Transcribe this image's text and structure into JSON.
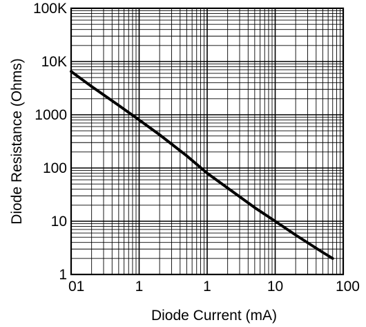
{
  "chart_data": {
    "type": "line",
    "title": "",
    "xlabel": "Diode Current (mA)",
    "ylabel": "Diode Resistance (Ohms)",
    "x_scale": "log",
    "y_scale": "log",
    "xlim": [
      0.01,
      100
    ],
    "ylim": [
      1,
      100000
    ],
    "grid": true,
    "x_tick_labels": [
      "01",
      "1",
      "1",
      "10",
      "100"
    ],
    "y_tick_labels": [
      "1",
      "10",
      "100",
      "1000",
      "10K",
      "100K"
    ],
    "series": [
      {
        "x": [
          0.01,
          0.02,
          0.05,
          0.1,
          0.2,
          0.5,
          1,
          2,
          5,
          10,
          20,
          50,
          70
        ],
        "y": [
          6500,
          3400,
          1500,
          800,
          420,
          170,
          80,
          42,
          18,
          10,
          5.5,
          2.6,
          2
        ]
      }
    ]
  }
}
